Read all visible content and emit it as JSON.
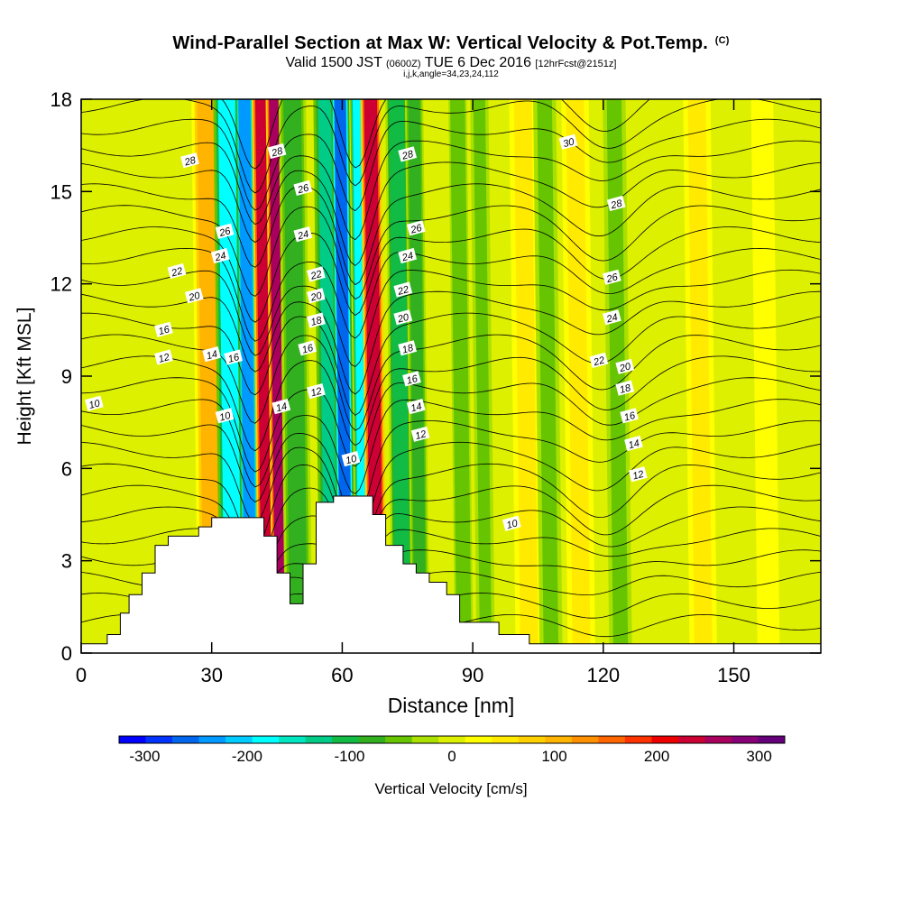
{
  "title": {
    "main": "Wind-Parallel Section at Max W: Vertical Velocity & Pot.Temp.",
    "copyright": "(C)",
    "valid_prefix": "Valid 1500 JST",
    "valid_z": "(0600Z)",
    "valid_date": "TUE 6 Dec 2016",
    "forecast": "[12hrFcst@2151z]",
    "indices": "i,j,k,angle=34,23,24,112"
  },
  "chart_data": {
    "type": "heatmap",
    "xlabel": "Distance [nm]",
    "ylabel": "Height [Kft MSL]",
    "xlim": [
      0,
      170
    ],
    "ylim": [
      0,
      18
    ],
    "x_ticks": [
      0,
      30,
      60,
      90,
      120,
      150
    ],
    "y_ticks": [
      0,
      3,
      6,
      9,
      12,
      15,
      18
    ],
    "colorbar": {
      "label": "Vertical Velocity [cm/s]",
      "min": -325,
      "max": 325,
      "tick_values": [
        -300,
        -200,
        -100,
        0,
        100,
        200,
        300
      ],
      "colors": [
        "#0000ff",
        "#0033ff",
        "#0066ee",
        "#0099ff",
        "#00ccff",
        "#00ffff",
        "#00e6c0",
        "#00cc88",
        "#11bb44",
        "#33b020",
        "#66c400",
        "#aae000",
        "#ddf000",
        "#ffff00",
        "#ffea00",
        "#ffd000",
        "#ffb400",
        "#ff9000",
        "#ff6600",
        "#ff3300",
        "#ee0000",
        "#cc0033",
        "#a8005c",
        "#880077",
        "#66007a"
      ]
    },
    "vertical_velocity_bands": [
      {
        "x": 30.5,
        "w": 100,
        "width": 3.5
      },
      {
        "x": 35,
        "w": -170,
        "width": 3
      },
      {
        "x": 39,
        "w": -230,
        "width": 2
      },
      {
        "x": 43,
        "w": 240,
        "width": 2.2
      },
      {
        "x": 46,
        "w": 250,
        "width": 2
      },
      {
        "x": 50,
        "w": -90,
        "width": 3
      },
      {
        "x": 58,
        "w": -120,
        "width": 3
      },
      {
        "x": 61,
        "w": -260,
        "width": 2
      },
      {
        "x": 65,
        "w": -180,
        "width": 1.6
      },
      {
        "x": 68,
        "w": 230,
        "width": 2.2
      },
      {
        "x": 74,
        "w": -110,
        "width": 2.5
      },
      {
        "x": 78,
        "w": -70,
        "width": 2
      },
      {
        "x": 88,
        "w": -60,
        "width": 2
      },
      {
        "x": 93,
        "w": -55,
        "width": 2
      },
      {
        "x": 103,
        "w": 45,
        "width": 3
      },
      {
        "x": 108,
        "w": -45,
        "width": 2.5
      },
      {
        "x": 115,
        "w": 55,
        "width": 3
      },
      {
        "x": 124,
        "w": -55,
        "width": 2.5
      },
      {
        "x": 143,
        "w": 40,
        "width": 3
      },
      {
        "x": 158,
        "w": 35,
        "width": 3
      }
    ],
    "terrain": [
      [
        0,
        0.3
      ],
      [
        6,
        0.3
      ],
      [
        6,
        0.6
      ],
      [
        9,
        0.6
      ],
      [
        9,
        1.3
      ],
      [
        11,
        1.3
      ],
      [
        11,
        1.9
      ],
      [
        14,
        1.9
      ],
      [
        14,
        2.6
      ],
      [
        17,
        2.6
      ],
      [
        17,
        3.5
      ],
      [
        20,
        3.5
      ],
      [
        20,
        3.8
      ],
      [
        27,
        3.8
      ],
      [
        27,
        4.1
      ],
      [
        30,
        4.1
      ],
      [
        30,
        4.4
      ],
      [
        42,
        4.4
      ],
      [
        42,
        3.8
      ],
      [
        45,
        3.8
      ],
      [
        45,
        2.6
      ],
      [
        48,
        2.6
      ],
      [
        48,
        1.6
      ],
      [
        51,
        1.6
      ],
      [
        51,
        2.9
      ],
      [
        54,
        2.9
      ],
      [
        54,
        4.9
      ],
      [
        58,
        4.9
      ],
      [
        58,
        5.1
      ],
      [
        67,
        5.1
      ],
      [
        67,
        4.5
      ],
      [
        70,
        4.5
      ],
      [
        70,
        3.5
      ],
      [
        74,
        3.5
      ],
      [
        74,
        2.9
      ],
      [
        77,
        2.9
      ],
      [
        77,
        2.6
      ],
      [
        80,
        2.6
      ],
      [
        80,
        2.3
      ],
      [
        84,
        2.3
      ],
      [
        84,
        1.9
      ],
      [
        87,
        1.9
      ],
      [
        87,
        1.0
      ],
      [
        96,
        1.0
      ],
      [
        96,
        0.6
      ],
      [
        103,
        0.6
      ],
      [
        103,
        0.3
      ],
      [
        170,
        0.3
      ]
    ],
    "theta_contour_labels": [
      {
        "value": "28",
        "x": 25,
        "y": 16.0
      },
      {
        "value": "28",
        "x": 45,
        "y": 16.3
      },
      {
        "value": "26",
        "x": 51,
        "y": 15.1
      },
      {
        "value": "28",
        "x": 75,
        "y": 16.2
      },
      {
        "value": "30",
        "x": 112,
        "y": 16.6
      },
      {
        "value": "28",
        "x": 123,
        "y": 14.6
      },
      {
        "value": "26",
        "x": 33,
        "y": 13.7
      },
      {
        "value": "24",
        "x": 51,
        "y": 13.6
      },
      {
        "value": "26",
        "x": 77,
        "y": 13.8
      },
      {
        "value": "24",
        "x": 32,
        "y": 12.9
      },
      {
        "value": "22",
        "x": 22,
        "y": 12.4
      },
      {
        "value": "22",
        "x": 54,
        "y": 12.3
      },
      {
        "value": "24",
        "x": 75,
        "y": 12.9
      },
      {
        "value": "26",
        "x": 122,
        "y": 12.2
      },
      {
        "value": "20",
        "x": 26,
        "y": 11.6
      },
      {
        "value": "22",
        "x": 74,
        "y": 11.8
      },
      {
        "value": "20",
        "x": 54,
        "y": 11.6
      },
      {
        "value": "20",
        "x": 74,
        "y": 10.9
      },
      {
        "value": "18",
        "x": 54,
        "y": 10.8
      },
      {
        "value": "24",
        "x": 122,
        "y": 10.9
      },
      {
        "value": "16",
        "x": 19,
        "y": 10.5
      },
      {
        "value": "16",
        "x": 52,
        "y": 9.9
      },
      {
        "value": "18",
        "x": 75,
        "y": 9.9
      },
      {
        "value": "14",
        "x": 30,
        "y": 9.7
      },
      {
        "value": "16",
        "x": 35,
        "y": 9.6
      },
      {
        "value": "22",
        "x": 119,
        "y": 9.5
      },
      {
        "value": "20",
        "x": 125,
        "y": 9.3
      },
      {
        "value": "12",
        "x": 19,
        "y": 9.6
      },
      {
        "value": "16",
        "x": 76,
        "y": 8.9
      },
      {
        "value": "12",
        "x": 54,
        "y": 8.5
      },
      {
        "value": "18",
        "x": 125,
        "y": 8.6
      },
      {
        "value": "10",
        "x": 3,
        "y": 8.1
      },
      {
        "value": "14",
        "x": 46,
        "y": 8.0
      },
      {
        "value": "14",
        "x": 77,
        "y": 8.0
      },
      {
        "value": "10",
        "x": 33,
        "y": 7.7
      },
      {
        "value": "16",
        "x": 126,
        "y": 7.7
      },
      {
        "value": "12",
        "x": 78,
        "y": 7.1
      },
      {
        "value": "14",
        "x": 127,
        "y": 6.8
      },
      {
        "value": "10",
        "x": 62,
        "y": 6.3
      },
      {
        "value": "12",
        "x": 128,
        "y": 5.8
      },
      {
        "value": "10",
        "x": 99,
        "y": 4.2
      }
    ]
  }
}
